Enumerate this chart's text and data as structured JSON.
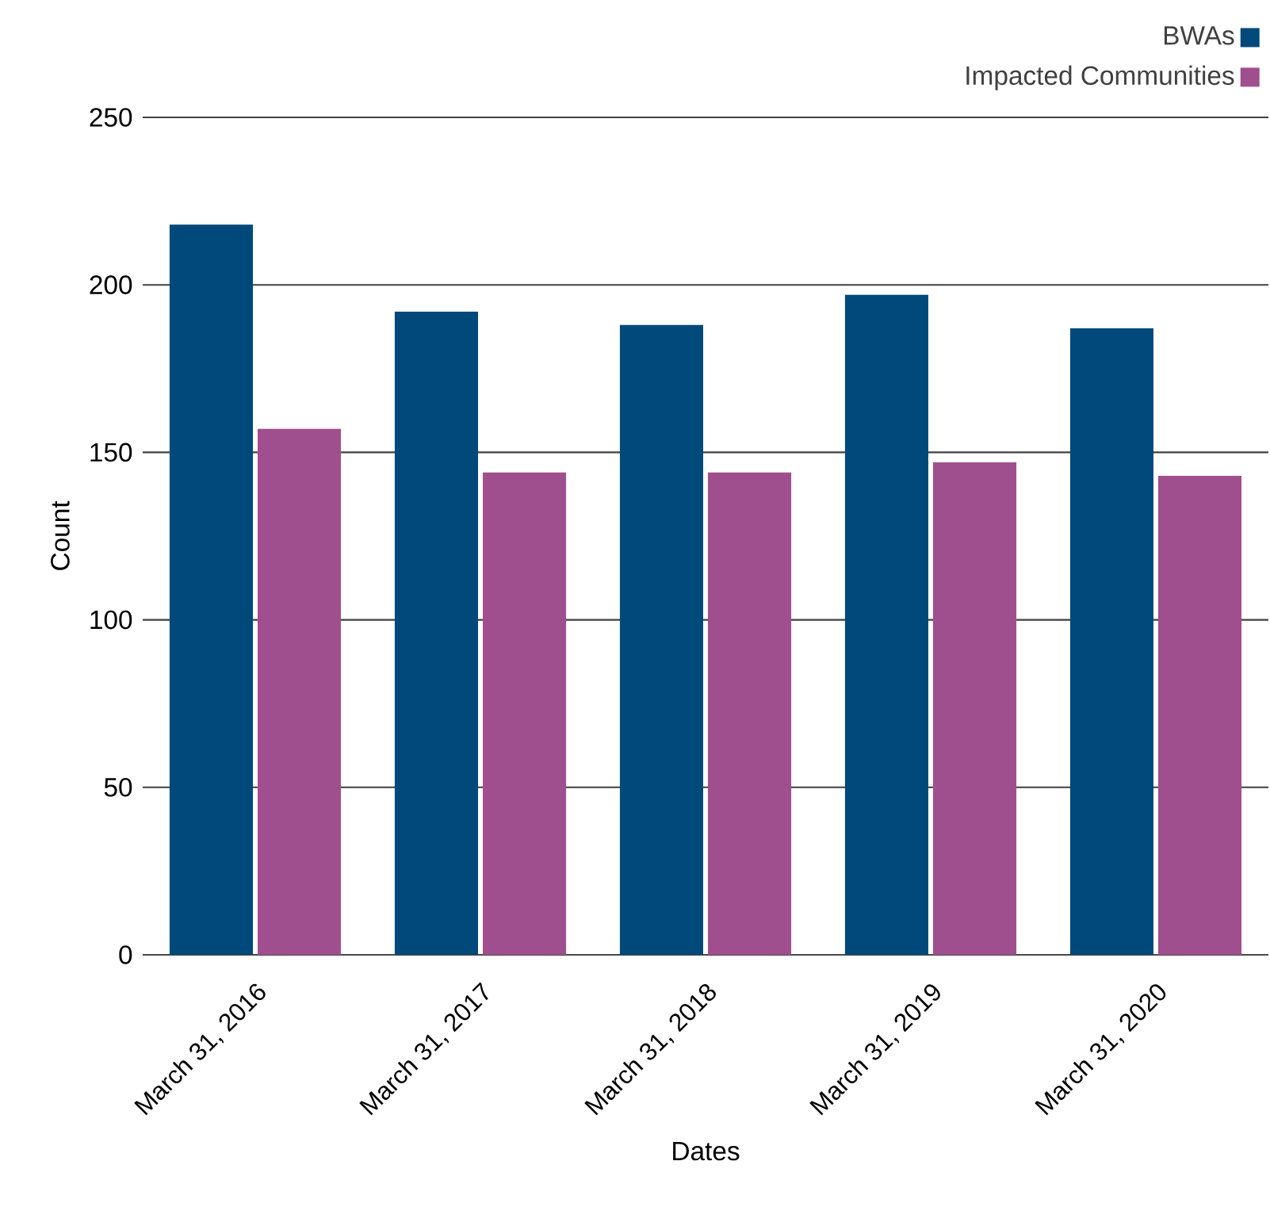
{
  "chart_data": {
    "type": "bar",
    "xlabel": "Dates",
    "ylabel": "Count",
    "categories": [
      "March 31, 2016",
      "March 31, 2017",
      "March 31, 2018",
      "March 31, 2019",
      "March 31, 2020"
    ],
    "series": [
      {
        "name": "BWAs",
        "color": "#00497a",
        "values": [
          218,
          192,
          188,
          197,
          187
        ]
      },
      {
        "name": "Impacted Communities",
        "color": "#a04f8e",
        "values": [
          157,
          144,
          144,
          147,
          143
        ]
      }
    ],
    "ylim": [
      0,
      250
    ],
    "yticks": [
      0,
      50,
      100,
      150,
      200,
      250
    ],
    "grid": "y",
    "legend": "top right"
  }
}
